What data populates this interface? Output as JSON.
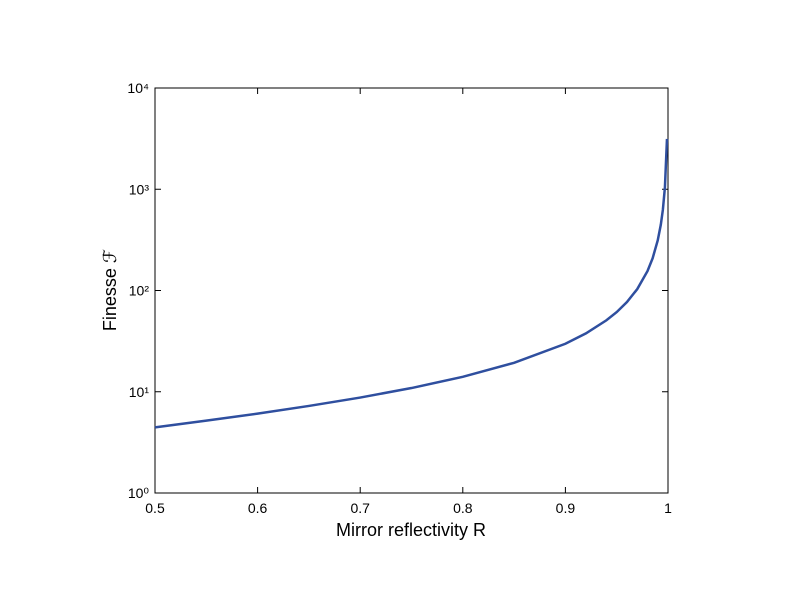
{
  "chart_data": {
    "type": "line",
    "xlabel": "Mirror reflectivity R",
    "ylabel": "Finesse ℱ",
    "x": [
      0.5,
      0.55,
      0.6,
      0.65,
      0.7,
      0.75,
      0.8,
      0.85,
      0.9,
      0.92,
      0.94,
      0.95,
      0.96,
      0.97,
      0.98,
      0.985,
      0.99,
      0.993,
      0.995,
      0.997,
      0.999
    ],
    "series": [
      {
        "color": "#2f4f9f",
        "values": [
          4.443,
          5.18,
          6.08,
          7.24,
          8.76,
          10.88,
          14.05,
          19.31,
          29.8,
          37.7,
          50.8,
          61.2,
          77.0,
          103.1,
          155.5,
          207.9,
          312.6,
          447,
          627,
          1046,
          3140
        ]
      }
    ],
    "xlim": [
      0.5,
      1
    ],
    "xticks": [
      0.5,
      0.6,
      0.7,
      0.8,
      0.9,
      1
    ],
    "ylim": [
      1,
      10000
    ],
    "ylog": true,
    "yticks": [
      {
        "value": 1,
        "label": "10⁰"
      },
      {
        "value": 10,
        "label": "10¹"
      },
      {
        "value": 100,
        "label": "10²"
      },
      {
        "value": 1000,
        "label": "10³"
      },
      {
        "value": 10000,
        "label": "10⁴"
      }
    ]
  }
}
